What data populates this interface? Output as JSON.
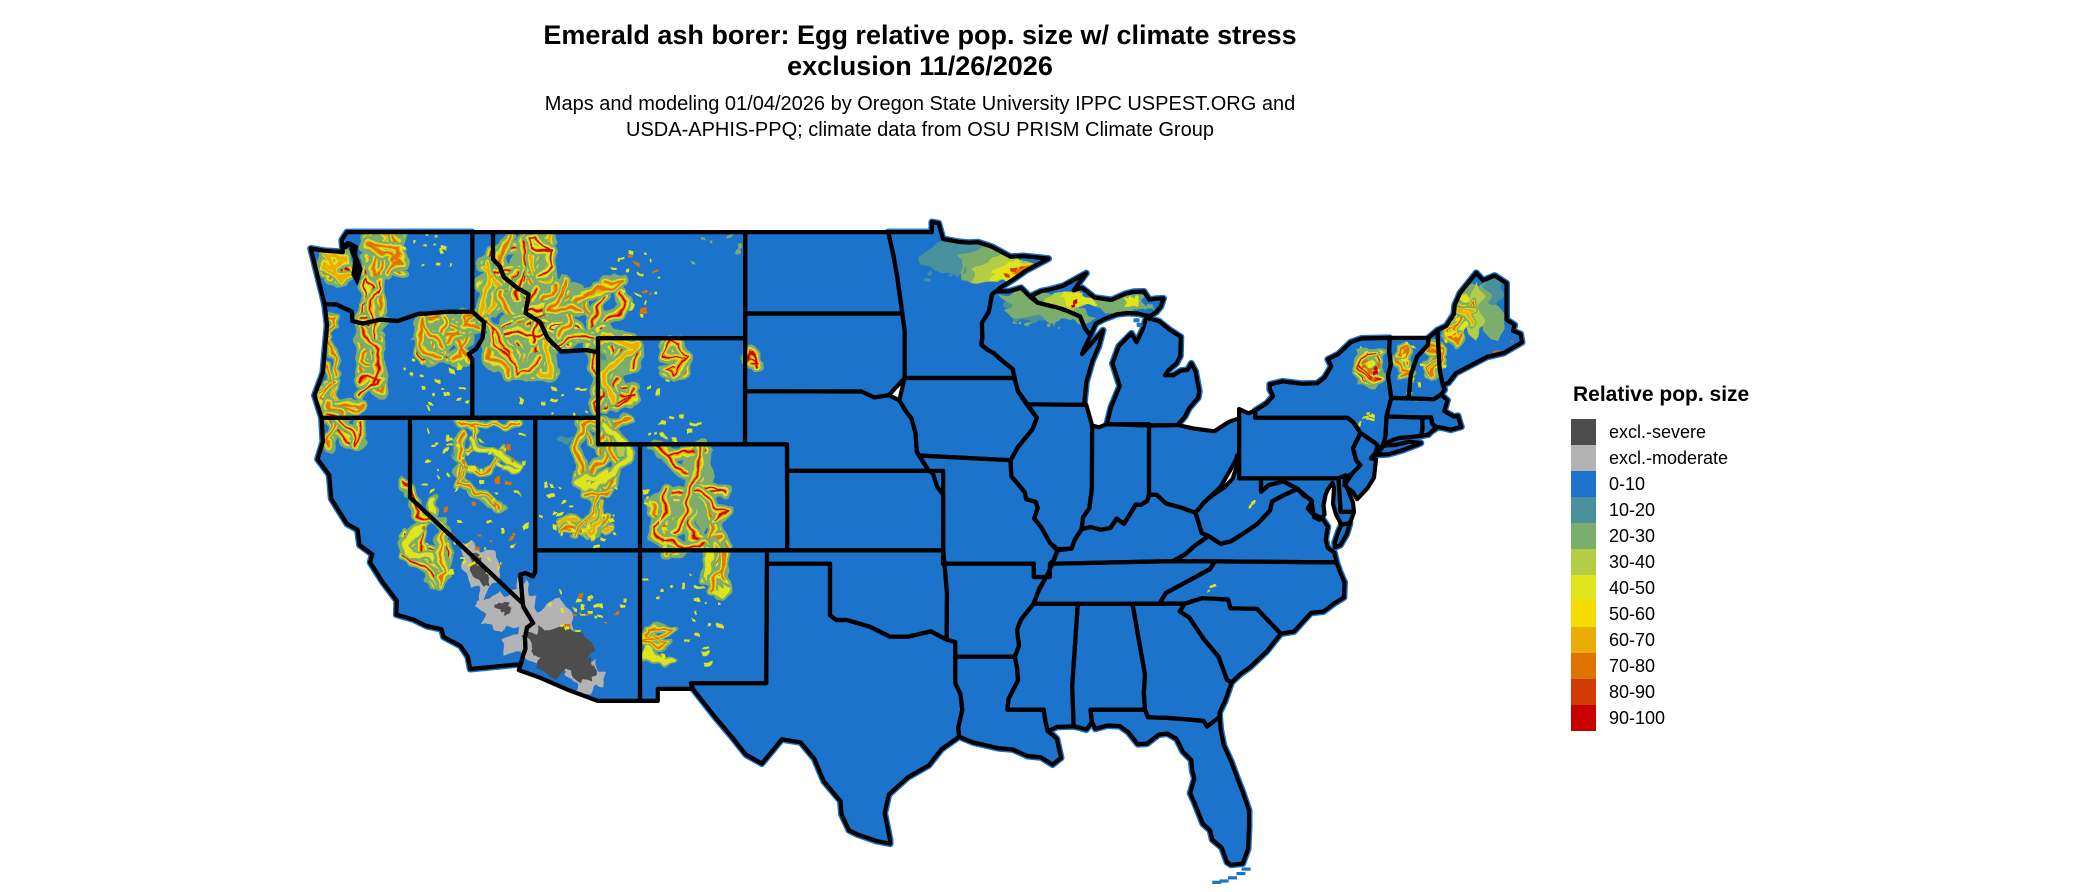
{
  "title": {
    "line1": "Emerald ash borer: Egg relative pop. size w/ climate stress",
    "line2": "exclusion 11/26/2026"
  },
  "subtitle": {
    "line1": "Maps and modeling 01/04/2026 by Oregon State University IPPC USPEST.ORG and",
    "line2": "USDA-APHIS-PPQ; climate data from OSU PRISM Climate Group"
  },
  "legend": {
    "title": "Relative pop. size",
    "items": [
      {
        "label": "excl.-severe",
        "color": "#4D4D4D"
      },
      {
        "label": "excl.-moderate",
        "color": "#B3B3B3"
      },
      {
        "label": "0-10",
        "color": "#1B73CB"
      },
      {
        "label": "10-20",
        "color": "#4A919D"
      },
      {
        "label": "20-30",
        "color": "#7BAD6D"
      },
      {
        "label": "30-40",
        "color": "#B3CE44"
      },
      {
        "label": "40-50",
        "color": "#E0E41A"
      },
      {
        "label": "50-60",
        "color": "#F5DC00"
      },
      {
        "label": "60-70",
        "color": "#ECAC06"
      },
      {
        "label": "70-80",
        "color": "#DF7300"
      },
      {
        "label": "80-90",
        "color": "#D23C00"
      },
      {
        "label": "90-100",
        "color": "#C80000"
      }
    ]
  },
  "map": {
    "land_base_category": "0-10",
    "land_color": "#1B73CB",
    "border_color": "#000000",
    "background_color": "#FFFFFF",
    "water_and_foreign_areas": "white (Canada, Mexico, oceans, Great Lakes unfilled)"
  },
  "map_data": {
    "type": "choropleth-raster",
    "variable": "Relative pop. size",
    "categories": [
      "excl.-severe",
      "excl.-moderate",
      "0-10",
      "10-20",
      "20-30",
      "30-40",
      "40-50",
      "50-60",
      "60-70",
      "70-80",
      "80-90",
      "90-100"
    ],
    "observations": [
      {
        "region": "Eastern, central and southern US lowlands",
        "category": "0-10"
      },
      {
        "region": "Cascades, Olympics and Pacific coast ranges (WA/OR)",
        "category": "40-100 ridges over 20-30 flanks"
      },
      {
        "region": "Northern Rockies (ID panhandle, western MT)",
        "category": "40-100 ridge network over 20-30"
      },
      {
        "region": "Central Idaho mountains",
        "category": "40-100 ridge network over 20-30"
      },
      {
        "region": "Greater Yellowstone / Wind River / Bighorn (WY-MT)",
        "category": "20-70 with 10-20 plateau core"
      },
      {
        "region": "Sierra Nevada (CA)",
        "category": "40-90 diagonal band"
      },
      {
        "region": "Great Basin ranges (NV, S UT)",
        "category": "scattered 40-70 flecks"
      },
      {
        "region": "Colorado Rockies extending to N New Mexico",
        "category": "30-90 band"
      },
      {
        "region": "Sonoran/Mojave deserts (S AZ, SE CA)",
        "category": "excl.-severe core with excl.-moderate fringe"
      },
      {
        "region": "Northern Minnesota arrowhead",
        "category": "10-80 gradient peaking at Lake Superior shore"
      },
      {
        "region": "Northern Wisconsin / Upper Michigan",
        "category": "10-60 with small 80-100 specks"
      },
      {
        "region": "Adirondacks (NY), Green/White Mtns (VT/NH)",
        "category": "20-80 patches"
      },
      {
        "region": "Northern Maine",
        "category": "20-50 with 10-20 in far north"
      }
    ]
  }
}
